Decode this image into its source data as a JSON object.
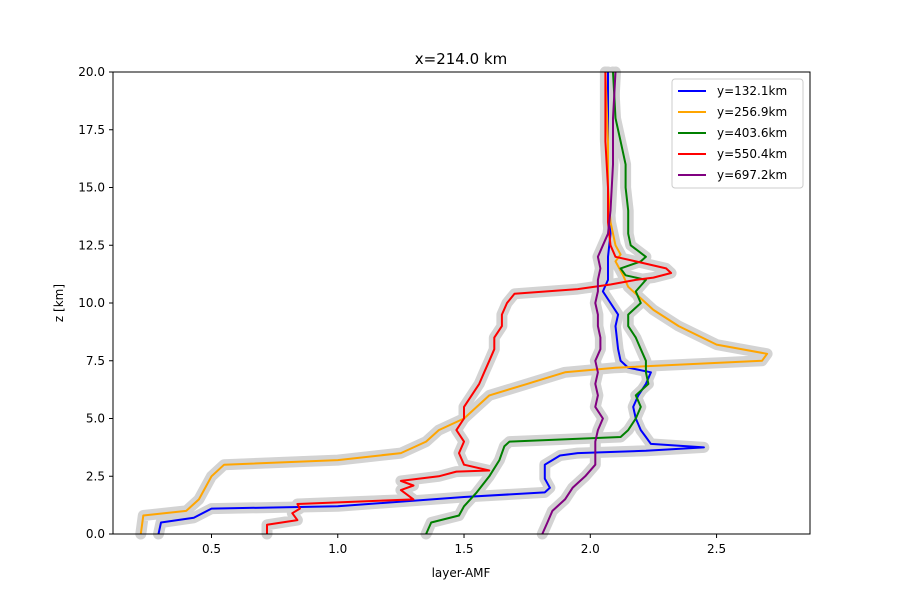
{
  "chart_data": {
    "type": "line",
    "title": "x=214.0 km",
    "xlabel": "layer-AMF",
    "ylabel": "z [km]",
    "xlim": [
      0.11,
      2.87
    ],
    "ylim": [
      0,
      20
    ],
    "xticks": [
      0.5,
      1.0,
      1.5,
      2.0,
      2.5
    ],
    "xtick_labels": [
      "0.5",
      "1.0",
      "1.5",
      "2.0",
      "2.5"
    ],
    "yticks": [
      0,
      2.5,
      5,
      7.5,
      10,
      12.5,
      15,
      17.5,
      20
    ],
    "ytick_labels": [
      "0.0",
      "2.5",
      "5.0",
      "7.5",
      "10.0",
      "12.5",
      "15.0",
      "17.5",
      "20.0"
    ],
    "grid": false,
    "legend_position": "top-right",
    "uncertainty_band_color": "#d3d3d3",
    "series": [
      {
        "name": "y=132.1km",
        "color": "#0000ff",
        "points": [
          [
            0.29,
            0
          ],
          [
            0.3,
            0.5
          ],
          [
            0.43,
            0.7
          ],
          [
            0.5,
            1.1
          ],
          [
            1.0,
            1.2
          ],
          [
            1.5,
            1.6
          ],
          [
            1.82,
            1.8
          ],
          [
            1.84,
            2.0
          ],
          [
            1.82,
            2.4
          ],
          [
            1.82,
            3.0
          ],
          [
            1.85,
            3.2
          ],
          [
            1.88,
            3.4
          ],
          [
            1.95,
            3.5
          ],
          [
            2.22,
            3.6
          ],
          [
            2.45,
            3.75
          ],
          [
            2.24,
            3.9
          ],
          [
            2.22,
            4.2
          ],
          [
            2.2,
            4.5
          ],
          [
            2.18,
            5.0
          ],
          [
            2.17,
            5.5
          ],
          [
            2.19,
            6.0
          ],
          [
            2.22,
            6.5
          ],
          [
            2.24,
            7.0
          ],
          [
            2.15,
            7.2
          ],
          [
            2.12,
            7.5
          ],
          [
            2.11,
            8.0
          ],
          [
            2.1,
            9.0
          ],
          [
            2.11,
            9.5
          ],
          [
            2.08,
            10.0
          ],
          [
            2.05,
            10.5
          ],
          [
            2.07,
            11.0
          ],
          [
            2.07,
            12.0
          ],
          [
            2.08,
            13.0
          ],
          [
            2.07,
            14.0
          ],
          [
            2.07,
            16.0
          ],
          [
            2.07,
            18.0
          ],
          [
            2.07,
            20.0
          ]
        ]
      },
      {
        "name": "y=256.9km",
        "color": "#ffa500",
        "points": [
          [
            0.22,
            0
          ],
          [
            0.23,
            0.8
          ],
          [
            0.4,
            1.0
          ],
          [
            0.45,
            1.5
          ],
          [
            0.5,
            2.5
          ],
          [
            0.55,
            3.0
          ],
          [
            1.0,
            3.2
          ],
          [
            1.25,
            3.5
          ],
          [
            1.35,
            4.0
          ],
          [
            1.4,
            4.5
          ],
          [
            1.5,
            5.0
          ],
          [
            1.6,
            6.0
          ],
          [
            1.75,
            6.5
          ],
          [
            1.9,
            7.0
          ],
          [
            2.1,
            7.2
          ],
          [
            2.68,
            7.5
          ],
          [
            2.7,
            7.8
          ],
          [
            2.5,
            8.2
          ],
          [
            2.35,
            9.0
          ],
          [
            2.25,
            9.7
          ],
          [
            2.2,
            10.2
          ],
          [
            2.15,
            10.7
          ],
          [
            2.13,
            11.2
          ],
          [
            2.1,
            11.8
          ],
          [
            2.12,
            12.1
          ],
          [
            2.1,
            12.5
          ],
          [
            2.08,
            13.5
          ],
          [
            2.07,
            15.0
          ],
          [
            2.07,
            17.0
          ],
          [
            2.06,
            20.0
          ]
        ]
      },
      {
        "name": "y=403.6km",
        "color": "#008000",
        "points": [
          [
            1.35,
            0
          ],
          [
            1.37,
            0.5
          ],
          [
            1.48,
            0.8
          ],
          [
            1.5,
            1.2
          ],
          [
            1.55,
            1.8
          ],
          [
            1.6,
            2.5
          ],
          [
            1.64,
            3.2
          ],
          [
            1.66,
            3.8
          ],
          [
            1.68,
            4.0
          ],
          [
            2.12,
            4.2
          ],
          [
            2.15,
            4.5
          ],
          [
            2.18,
            5.0
          ],
          [
            2.2,
            5.5
          ],
          [
            2.18,
            6.0
          ],
          [
            2.23,
            6.5
          ],
          [
            2.22,
            7.0
          ],
          [
            2.22,
            7.5
          ],
          [
            2.2,
            8.0
          ],
          [
            2.18,
            8.5
          ],
          [
            2.15,
            9.0
          ],
          [
            2.15,
            9.5
          ],
          [
            2.2,
            10.0
          ],
          [
            2.18,
            10.5
          ],
          [
            2.22,
            11.0
          ],
          [
            2.14,
            11.2
          ],
          [
            2.12,
            11.5
          ],
          [
            2.2,
            11.8
          ],
          [
            2.22,
            12.0
          ],
          [
            2.16,
            12.5
          ],
          [
            2.15,
            13.0
          ],
          [
            2.15,
            14.0
          ],
          [
            2.14,
            15.0
          ],
          [
            2.14,
            16.0
          ],
          [
            2.12,
            17.0
          ],
          [
            2.1,
            18.0
          ],
          [
            2.09,
            20.0
          ]
        ]
      },
      {
        "name": "y=550.4km",
        "color": "#ff0000",
        "points": [
          [
            0.72,
            0
          ],
          [
            0.72,
            0.4
          ],
          [
            0.84,
            0.6
          ],
          [
            0.82,
            0.9
          ],
          [
            0.85,
            1.1
          ],
          [
            0.84,
            1.3
          ],
          [
            1.3,
            1.5
          ],
          [
            1.25,
            1.9
          ],
          [
            1.3,
            2.1
          ],
          [
            1.25,
            2.3
          ],
          [
            1.4,
            2.5
          ],
          [
            1.47,
            2.7
          ],
          [
            1.6,
            2.75
          ],
          [
            1.5,
            3.0
          ],
          [
            1.48,
            3.5
          ],
          [
            1.5,
            4.0
          ],
          [
            1.47,
            4.5
          ],
          [
            1.5,
            5.0
          ],
          [
            1.5,
            5.5
          ],
          [
            1.53,
            6.0
          ],
          [
            1.56,
            6.5
          ],
          [
            1.58,
            7.0
          ],
          [
            1.6,
            7.5
          ],
          [
            1.62,
            8.0
          ],
          [
            1.62,
            8.5
          ],
          [
            1.65,
            9.0
          ],
          [
            1.65,
            9.5
          ],
          [
            1.67,
            10.0
          ],
          [
            1.7,
            10.4
          ],
          [
            1.95,
            10.6
          ],
          [
            2.08,
            10.8
          ],
          [
            2.18,
            11.0
          ],
          [
            2.25,
            11.1
          ],
          [
            2.32,
            11.3
          ],
          [
            2.3,
            11.5
          ],
          [
            2.18,
            11.8
          ],
          [
            2.1,
            12.0
          ],
          [
            2.08,
            12.5
          ],
          [
            2.07,
            13.5
          ],
          [
            2.07,
            15.0
          ],
          [
            2.06,
            17.0
          ],
          [
            2.06,
            20.0
          ]
        ]
      },
      {
        "name": "y=697.2km",
        "color": "#800080",
        "points": [
          [
            1.81,
            0
          ],
          [
            1.83,
            0.5
          ],
          [
            1.85,
            1.0
          ],
          [
            1.9,
            1.5
          ],
          [
            1.93,
            2.0
          ],
          [
            1.98,
            2.5
          ],
          [
            2.02,
            3.0
          ],
          [
            2.02,
            3.5
          ],
          [
            2.02,
            4.0
          ],
          [
            2.03,
            4.5
          ],
          [
            2.05,
            5.0
          ],
          [
            2.02,
            5.5
          ],
          [
            2.03,
            6.0
          ],
          [
            2.02,
            6.5
          ],
          [
            2.03,
            7.0
          ],
          [
            2.02,
            7.5
          ],
          [
            2.04,
            8.0
          ],
          [
            2.04,
            8.5
          ],
          [
            2.03,
            9.0
          ],
          [
            2.03,
            9.5
          ],
          [
            2.02,
            10.0
          ],
          [
            2.03,
            10.5
          ],
          [
            2.03,
            11.0
          ],
          [
            2.04,
            11.5
          ],
          [
            2.03,
            12.0
          ],
          [
            2.05,
            12.5
          ],
          [
            2.07,
            13.0
          ],
          [
            2.08,
            14.0
          ],
          [
            2.09,
            16.0
          ],
          [
            2.09,
            18.0
          ],
          [
            2.1,
            20.0
          ]
        ]
      }
    ]
  }
}
